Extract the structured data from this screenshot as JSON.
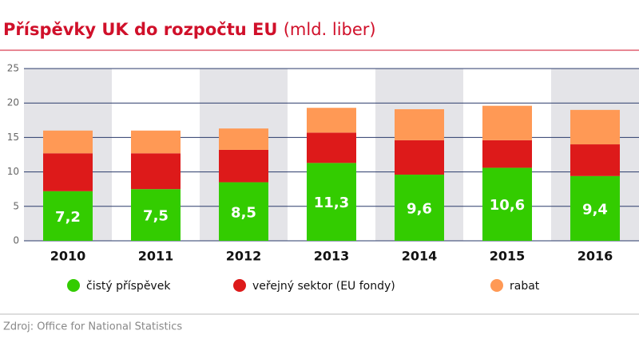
{
  "chart_data": {
    "type": "stacked-bar",
    "title": "Příspěvky UK do rozpočtu EU",
    "subtitle": "(mld. liber)",
    "source": "Zdroj: Office for National Statistics",
    "categories": [
      "2010",
      "2011",
      "2012",
      "2013",
      "2014",
      "2015",
      "2016"
    ],
    "series": [
      {
        "name": "čistý příspěvek",
        "color": "#33cc00",
        "values": [
          7.2,
          7.5,
          8.5,
          11.3,
          9.6,
          10.6,
          9.4
        ],
        "value_labels": [
          "7,2",
          "7,5",
          "8,5",
          "11,3",
          "9,6",
          "10,6",
          "9,4"
        ]
      },
      {
        "name": "veřejný sektor (EU fondy)",
        "color": "#dd1a1a",
        "values": [
          5.5,
          5.2,
          4.7,
          4.4,
          5.0,
          4.0,
          4.6
        ]
      },
      {
        "name": "rabat",
        "color": "#ff9955",
        "values": [
          3.3,
          3.3,
          3.1,
          3.6,
          4.5,
          5.0,
          5.0
        ]
      }
    ],
    "ylim": [
      0,
      25
    ],
    "yticks": [
      0,
      5,
      10,
      15,
      20,
      25
    ],
    "grid": true
  }
}
